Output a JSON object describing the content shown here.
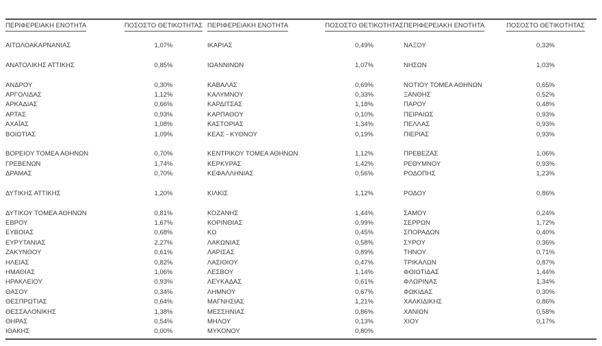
{
  "page": {
    "region_header": "ΠΕΡΙΦΕΡΕΙΑΚΗ ΕΝΟΤΗΤΑ",
    "positivity_header": "ΠΟΣΟΣΤΟ ΘΕΤΙΚΟΤΗΤΑΣ"
  },
  "table": {
    "columns": [
      "ΠΕΡΙΦΕΡΕΙΑΚΗ ΕΝΟΤΗΤΑ",
      "ΠΟΣΟΣΤΟ ΘΕΤΙΚΟΤΗΤΑΣ",
      "ΠΕΡΙΦΕΡΕΙΑΚΗ ΕΝΟΤΗΤΑ",
      "ΠΟΣΟΣΤΟ ΘΕΤΙΚΟΤΗΤΑΣ",
      "ΠΕΡΙΦΕΡΕΙΑΚΗ ΕΝΟΤΗΤΑ",
      "ΠΟΣΟΣΤΟ ΘΕΤΙΚΟΤΗΤΑΣ"
    ],
    "groups": [
      [
        [
          "ΑΙΤΩΛΟΑΚΑΡΝΑΝΙΑΣ",
          "1,07%",
          "ΙΚΑΡΙΑΣ",
          "0,49%",
          "ΝΑΞΟΥ",
          "0,33%"
        ]
      ],
      [
        [
          "ΑΝΑΤΟΛΙΚΗΣ ΑΤΤΙΚΗΣ",
          "0,85%",
          "ΙΩΑΝΝΙΝΩΝ",
          "1,07%",
          "ΝΗΣΩΝ",
          "1,03%"
        ]
      ],
      [
        [
          "ΑΝΔΡΟΥ",
          "0,30%",
          "ΚΑΒΑΛΑΣ",
          "0,69%",
          "ΝΟΤΙΟΥ ΤΟΜΕΑ ΑΘΗΝΩΝ",
          "0,65%"
        ],
        [
          "ΑΡΓΟΛΙΔΑΣ",
          "1,12%",
          "ΚΑΛΥΜΝΟΥ",
          "0,33%",
          "ΞΑΝΘΗΣ",
          "0,52%"
        ],
        [
          "ΑΡΚΑΔΙΑΣ",
          "0,66%",
          "ΚΑΡΔΙΤΣΑΣ",
          "1,18%",
          "ΠΑΡΟΥ",
          "0,48%"
        ],
        [
          "ΑΡΤΑΣ",
          "0,93%",
          "ΚΑΡΠΑΘΟΥ",
          "0,10%",
          "ΠΕΙΡΑΙΩΣ",
          "0,93%"
        ],
        [
          "ΑΧΑΪΑΣ",
          "1,08%",
          "ΚΑΣΤΟΡΙΑΣ",
          "1,34%",
          "ΠΕΛΛΑΣ",
          "0,93%"
        ],
        [
          "ΒΟΙΩΤΙΑΣ",
          "1,09%",
          "ΚΕΑΣ - ΚΥΘΝΟΥ",
          "0,19%",
          "ΠΙΕΡΙΑΣ",
          "0,93%"
        ]
      ],
      [
        [
          "ΒΟΡΕΙΟΥ ΤΟΜΕΑ ΑΘΗΝΩΝ",
          "0,70%",
          "ΚΕΝΤΡΙΚΟΥ ΤΟΜΕΑ ΑΘΗΝΩΝ",
          "1,12%",
          "ΠΡΕΒΕΖΑΣ",
          "1,06%"
        ],
        [
          "ΓΡΕΒΕΝΩΝ",
          "1,74%",
          "ΚΕΡΚΥΡΑΣ",
          "1,42%",
          "ΡΕΘΥΜΝΟΥ",
          "0,93%"
        ],
        [
          "ΔΡΑΜΑΣ",
          "0,70%",
          "ΚΕΦΑΛΛΗΝΙΑΣ",
          "0,56%",
          "ΡΟΔΟΠΗΣ",
          "1,23%"
        ]
      ],
      [
        [
          "ΔΥΤΙΚΗΣ ΑΤΤΙΚΗΣ",
          "1,20%",
          "ΚΙΛΚΙΣ",
          "1,12%",
          "ΡΟΔΟΥ",
          "0,86%"
        ]
      ],
      [
        [
          "ΔΥΤΙΚΟΥ ΤΟΜΕΑ ΑΘΗΝΩΝ",
          "0,81%",
          "ΚΟΖΑΝΗΣ",
          "1,44%",
          "ΣΑΜΟΥ",
          "0,24%"
        ],
        [
          "ΕΒΡΟΥ",
          "1,67%",
          "ΚΟΡΙΝΘΙΑΣ",
          "0,99%",
          "ΣΕΡΡΩΝ",
          "1,72%"
        ],
        [
          "ΕΥΒΟΙΑΣ",
          "0,68%",
          "ΚΩ",
          "0,45%",
          "ΣΠΟΡΑΔΩΝ",
          "0,40%"
        ],
        [
          "ΕΥΡΥΤΑΝΙΑΣ",
          "2,27%",
          "ΛΑΚΩΝΙΑΣ",
          "0,58%",
          "ΣΥΡΟΥ",
          "0,36%"
        ],
        [
          "ΖΑΚΥΝΘΟΥ",
          "0,61%",
          "ΛΑΡΙΣΑΣ",
          "0,89%",
          "ΤΗΝΟΥ",
          "0,71%"
        ],
        [
          "ΗΛΕΙΑΣ",
          "0,82%",
          "ΛΑΣΙΘΙΟΥ",
          "0,47%",
          "ΤΡΙΚΑΛΩΝ",
          "0,87%"
        ],
        [
          "ΗΜΑΘΙΑΣ",
          "1,06%",
          "ΛΕΣΒΟΥ",
          "1,14%",
          "ΦΘΙΩΤΙΔΑΣ",
          "1,44%"
        ],
        [
          "ΗΡΑΚΛΕΙΟΥ",
          "0,93%",
          "ΛΕΥΚΑΔΑΣ",
          "0,61%",
          "ΦΛΩΡΙΝΑΣ",
          "1,34%"
        ],
        [
          "ΘΑΣΟΥ",
          "0,34%",
          "ΛΗΜΝΟΥ",
          "0,67%",
          "ΦΩΚΙΔΑΣ",
          "0,30%"
        ],
        [
          "ΘΕΣΠΡΩΤΙΑΣ",
          "0,64%",
          "ΜΑΓΝΗΣΙΑΣ",
          "1,21%",
          "ΧΑΛΚΙΔΙΚΗΣ",
          "0,86%"
        ],
        [
          "ΘΕΣΣΑΛΟΝΙΚΗΣ",
          "1,38%",
          "ΜΕΣΣΗΝΙΑΣ",
          "0,86%",
          "ΧΑΝΙΩΝ",
          "0,58%"
        ],
        [
          "ΘΗΡΑΣ",
          "0,54%",
          "ΜΗΛΟΥ",
          "0,13%",
          "ΧΙΟΥ",
          "0,17%"
        ],
        [
          "ΙΘΑΚΗΣ",
          "0,00%",
          "ΜΥΚΟΝΟΥ",
          "0,80%",
          "",
          ""
        ]
      ]
    ]
  },
  "colors": {
    "text": "#3a3a3a",
    "rule": "#4d4d4d",
    "background": "#ffffff"
  }
}
